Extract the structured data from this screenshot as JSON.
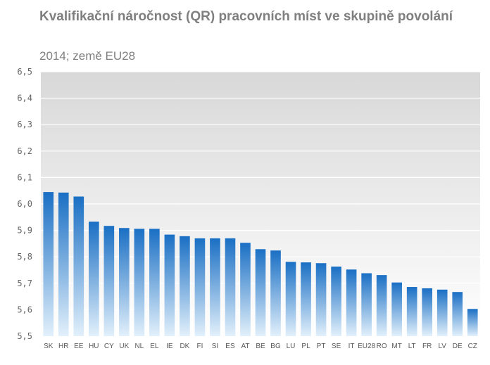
{
  "chart_data": {
    "type": "bar",
    "title": "Kvalifikační náročnost (QR)  pracovních míst ve skupině povolání",
    "subtitle": "2014; země EU28",
    "xlabel": "",
    "ylabel": "",
    "ylim": [
      5.5,
      6.5
    ],
    "yticks": [
      "6,5",
      "6,4",
      "6,3",
      "6,2",
      "6,1",
      "6,0",
      "5,9",
      "5,8",
      "5,7",
      "5,6",
      "5,5"
    ],
    "ytick_values": [
      6.5,
      6.4,
      6.3,
      6.2,
      6.1,
      6.0,
      5.9,
      5.8,
      5.7,
      5.6,
      5.5
    ],
    "grid": true,
    "legend": "none",
    "categories": [
      "SK",
      "HR",
      "EE",
      "HU",
      "CY",
      "UK",
      "NL",
      "EL",
      "IE",
      "DK",
      "FI",
      "SI",
      "ES",
      "AT",
      "BE",
      "BG",
      "LU",
      "PL",
      "PT",
      "SE",
      "IT",
      "EU28",
      "RO",
      "MT",
      "LT",
      "FR",
      "LV",
      "DE",
      "CZ"
    ],
    "values": [
      6.045,
      6.043,
      6.028,
      5.933,
      5.917,
      5.909,
      5.906,
      5.906,
      5.884,
      5.878,
      5.87,
      5.87,
      5.87,
      5.853,
      5.829,
      5.824,
      5.781,
      5.779,
      5.776,
      5.763,
      5.752,
      5.738,
      5.731,
      5.703,
      5.686,
      5.681,
      5.676,
      5.667,
      5.603
    ]
  },
  "colors": {
    "bar_top": "#1a6fc4",
    "bar_bottom": "#e2f0fb",
    "plot_bg_top": "#d8d8d8",
    "plot_bg_bottom": "#ffffff",
    "grid": "#ffffff"
  }
}
